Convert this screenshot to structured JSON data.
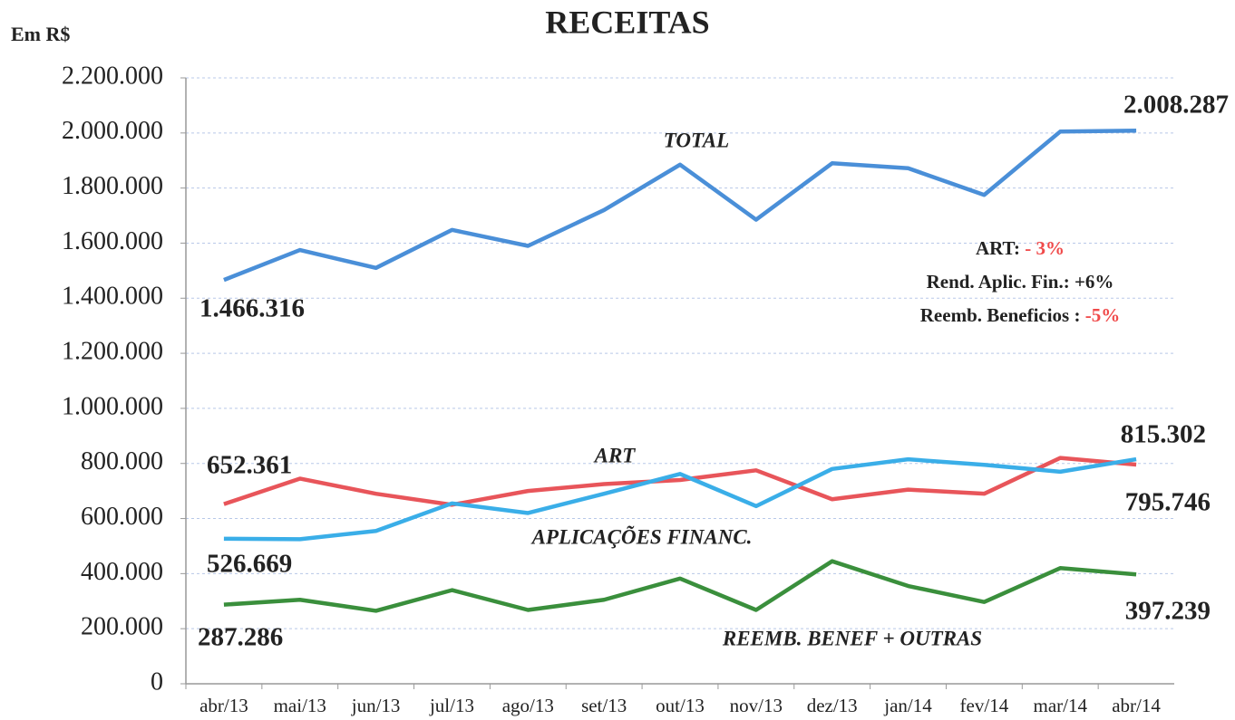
{
  "chart_data": {
    "type": "line",
    "title": "RECEITAS",
    "y_label": "Em R$",
    "categories": [
      "abr/13",
      "mai/13",
      "jun/13",
      "jul/13",
      "ago/13",
      "set/13",
      "out/13",
      "nov/13",
      "dez/13",
      "jan/14",
      "fev/14",
      "mar/14",
      "abr/14"
    ],
    "ylim": [
      0,
      2200000
    ],
    "yticks": [
      0,
      {
        "value": 200000,
        "label": "200.000"
      },
      {
        "value": 400000,
        "label": "400.000"
      },
      {
        "value": 600000,
        "label": "600.000"
      },
      {
        "value": 800000,
        "label": "800.000"
      },
      {
        "value": 1000000,
        "label": "1.000.000"
      },
      {
        "value": 1200000,
        "label": "1.200.000"
      },
      {
        "value": 1400000,
        "label": "1.400.000"
      },
      {
        "value": 1600000,
        "label": "1.600.000"
      },
      {
        "value": 1800000,
        "label": "1.800.000"
      },
      {
        "value": 2000000,
        "label": "2.000.000"
      },
      {
        "value": 2200000,
        "label": "2.200.000"
      }
    ],
    "grid": true,
    "series": [
      {
        "name": "TOTAL",
        "color": "#4a8fd8",
        "values": [
          1466316,
          1575000,
          1510000,
          1648000,
          1590000,
          1720000,
          1885000,
          1685000,
          1890000,
          1872000,
          1775000,
          2005000,
          2008287
        ],
        "value_labels": [
          "1.466.316",
          null,
          null,
          null,
          null,
          null,
          null,
          null,
          null,
          null,
          null,
          null,
          "2.008.287"
        ]
      },
      {
        "name": "ART",
        "color": "#e8555a",
        "values": [
          652361,
          745000,
          690000,
          650000,
          700000,
          725000,
          740000,
          775000,
          670000,
          705000,
          690000,
          820000,
          795746
        ],
        "value_labels": [
          "652.361",
          null,
          null,
          null,
          null,
          null,
          null,
          null,
          null,
          null,
          null,
          null,
          "795.746"
        ]
      },
      {
        "name": "APLICAÇÕES FINANC.",
        "color": "#3aaee8",
        "values": [
          526669,
          525000,
          555000,
          655000,
          620000,
          690000,
          762000,
          645000,
          780000,
          815000,
          795000,
          770000,
          815302
        ],
        "value_labels": [
          "526.669",
          null,
          null,
          null,
          null,
          null,
          null,
          null,
          null,
          null,
          null,
          null,
          "815.302"
        ]
      },
      {
        "name": "REEMB. BENEF + OUTRAS",
        "color": "#3a8f3c",
        "values": [
          287286,
          305000,
          265000,
          340000,
          268000,
          305000,
          382000,
          268000,
          445000,
          355000,
          297000,
          420000,
          397239
        ],
        "value_labels": [
          "287.286",
          null,
          null,
          null,
          null,
          null,
          null,
          null,
          null,
          null,
          null,
          null,
          "397.239"
        ]
      }
    ],
    "notes": [
      {
        "label": "ART:",
        "value": "- 3%",
        "value_color": "#f04a4a"
      },
      {
        "label": "Rend. Aplic. Fin.:",
        "value": "+6%",
        "value_color": "#222222"
      },
      {
        "label": "Reemb. Beneficios :",
        "value": "-5%",
        "value_color": "#f04a4a"
      }
    ]
  }
}
